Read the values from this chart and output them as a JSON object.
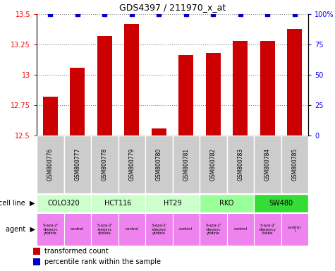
{
  "title": "GDS4397 / 211970_x_at",
  "samples": [
    "GSM800776",
    "GSM800777",
    "GSM800778",
    "GSM800779",
    "GSM800780",
    "GSM800781",
    "GSM800782",
    "GSM800783",
    "GSM800784",
    "GSM800785"
  ],
  "transformed_counts": [
    12.82,
    13.06,
    13.32,
    13.42,
    12.56,
    13.16,
    13.18,
    13.28,
    13.28,
    13.38
  ],
  "percentile_ranks": [
    100,
    100,
    100,
    100,
    100,
    100,
    100,
    100,
    100,
    100
  ],
  "ylim": [
    12.5,
    13.5
  ],
  "yticks": [
    12.5,
    12.75,
    13.0,
    13.25,
    13.5
  ],
  "ytick_labels": [
    "12.5",
    "12.75",
    "13",
    "13.25",
    "13.5"
  ],
  "bar_color": "#cc0000",
  "dot_color": "#0000cc",
  "cell_lines": [
    {
      "name": "COLO320",
      "start": 0,
      "end": 2,
      "color": "#ccffcc"
    },
    {
      "name": "HCT116",
      "start": 2,
      "end": 4,
      "color": "#ccffcc"
    },
    {
      "name": "HT29",
      "start": 4,
      "end": 6,
      "color": "#ccffcc"
    },
    {
      "name": "RKO",
      "start": 6,
      "end": 8,
      "color": "#99ff99"
    },
    {
      "name": "SW480",
      "start": 8,
      "end": 10,
      "color": "#33dd33"
    }
  ],
  "agents": [
    {
      "name": "5-aza-2'\n-deoxyc\nytidine",
      "color": "#ee82ee",
      "sample_idx": 0
    },
    {
      "name": "control",
      "color": "#ee82ee",
      "sample_idx": 1
    },
    {
      "name": "5-aza-2'\n-deoxyc\nytidine",
      "color": "#ee82ee",
      "sample_idx": 2
    },
    {
      "name": "control",
      "color": "#ee82ee",
      "sample_idx": 3
    },
    {
      "name": "5-aza-2'\n-deoxyc\nytidine",
      "color": "#ee82ee",
      "sample_idx": 4
    },
    {
      "name": "control",
      "color": "#ee82ee",
      "sample_idx": 5
    },
    {
      "name": "5-aza-2'\n-deoxyc\nytidine",
      "color": "#ee82ee",
      "sample_idx": 6
    },
    {
      "name": "control",
      "color": "#ee82ee",
      "sample_idx": 7
    },
    {
      "name": "5-aza-2'\n-deoxycy\ntidine",
      "color": "#ee82ee",
      "sample_idx": 8
    },
    {
      "name": "control\nl",
      "color": "#ee82ee",
      "sample_idx": 9
    }
  ],
  "right_yticks": [
    0,
    25,
    50,
    75,
    100
  ],
  "right_ytick_labels": [
    "0",
    "25",
    "50",
    "75",
    "100%"
  ],
  "background_color": "#ffffff",
  "grid_color": "#888888",
  "sample_bg_color": "#cccccc"
}
